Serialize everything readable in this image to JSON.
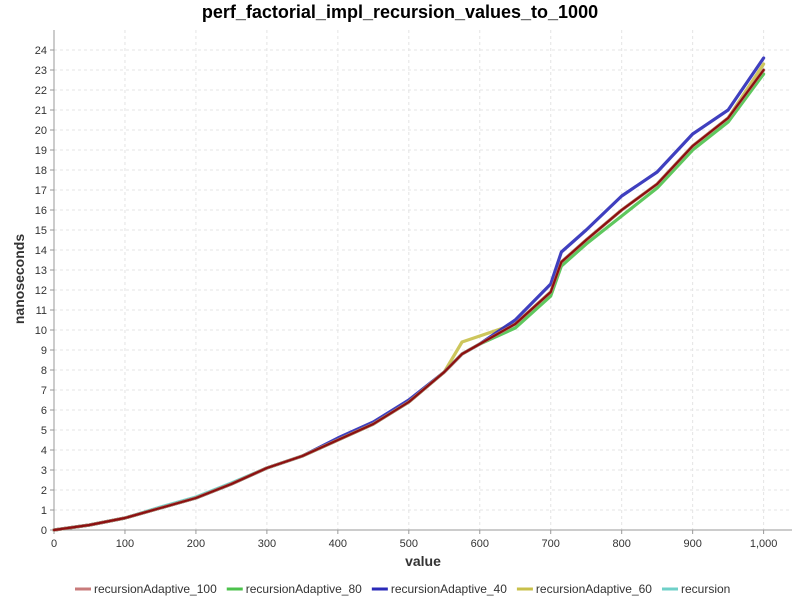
{
  "chart_data": {
    "type": "line",
    "title": "perf_factorial_impl_recursion_values_to_1000",
    "xlabel": "value",
    "ylabel": "nanoseconds",
    "xlim": [
      0,
      1040
    ],
    "ylim": [
      0,
      25
    ],
    "x_ticks": [
      0,
      100,
      200,
      300,
      400,
      500,
      600,
      700,
      800,
      900,
      1000
    ],
    "x_tick_labels": [
      "0",
      "100",
      "200",
      "300",
      "400",
      "500",
      "600",
      "700",
      "800",
      "900",
      "1,000"
    ],
    "y_ticks": [
      0,
      1,
      2,
      3,
      4,
      5,
      6,
      7,
      8,
      9,
      10,
      11,
      12,
      13,
      14,
      15,
      16,
      17,
      18,
      19,
      20,
      21,
      22,
      23,
      24
    ],
    "grid": true,
    "legend_position": "bottom",
    "x": [
      0,
      50,
      100,
      150,
      200,
      250,
      300,
      350,
      400,
      450,
      500,
      550,
      575,
      600,
      650,
      700,
      715,
      750,
      800,
      850,
      900,
      950,
      1000
    ],
    "series": [
      {
        "name": "recursionAdaptive_100",
        "color": "#c87b7b",
        "values": [
          0,
          0.25,
          0.6,
          1.1,
          1.6,
          2.3,
          3.1,
          3.7,
          4.5,
          5.3,
          6.4,
          7.9,
          8.8,
          9.3,
          10.3,
          11.9,
          13.4,
          14.5,
          16.0,
          17.3,
          19.2,
          20.6,
          23.0
        ]
      },
      {
        "name": "recursionAdaptive_80",
        "color": "#4cc24c",
        "values": [
          0,
          0.25,
          0.6,
          1.1,
          1.6,
          2.3,
          3.1,
          3.7,
          4.5,
          5.3,
          6.4,
          7.9,
          8.8,
          9.3,
          10.1,
          11.7,
          13.2,
          14.3,
          15.7,
          17.1,
          19.0,
          20.4,
          22.8
        ]
      },
      {
        "name": "recursionAdaptive_40",
        "color": "#2a2ab8",
        "values": [
          0,
          0.25,
          0.6,
          1.1,
          1.6,
          2.3,
          3.1,
          3.7,
          4.6,
          5.4,
          6.5,
          7.9,
          8.8,
          9.3,
          10.5,
          12.3,
          13.9,
          15.0,
          16.7,
          17.9,
          19.8,
          21.0,
          23.6
        ]
      },
      {
        "name": "recursionAdaptive_60",
        "color": "#c8c04a",
        "values": [
          0,
          0.25,
          0.6,
          1.1,
          1.6,
          2.3,
          3.1,
          3.7,
          4.5,
          5.3,
          6.4,
          7.9,
          9.4,
          9.7,
          10.3,
          11.9,
          13.4,
          14.5,
          16.0,
          17.3,
          19.2,
          20.6,
          23.3
        ]
      },
      {
        "name": "recursion",
        "color": "#6fd0c8",
        "values": [
          0,
          0.25,
          0.6,
          1.15,
          1.65,
          2.35,
          3.1,
          3.7,
          4.5,
          5.3,
          6.4,
          7.9,
          8.8,
          9.3,
          10.3,
          11.9,
          13.4,
          14.5,
          16.0,
          17.3,
          19.2,
          20.6,
          23.0
        ]
      }
    ]
  }
}
